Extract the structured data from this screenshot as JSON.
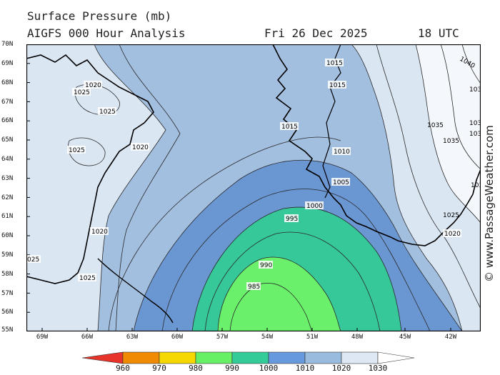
{
  "header": {
    "title": "Surface Pressure (mb)",
    "subtitle": "AIGFS 000 Hour Analysis",
    "date": "Fri 26 Dec 2025",
    "time": "18 UTC"
  },
  "credit": "© www.PassageWeather.com",
  "axes": {
    "latitudes": [
      "70N",
      "69N",
      "68N",
      "67N",
      "66N",
      "65N",
      "64N",
      "63N",
      "62N",
      "61N",
      "60N",
      "59N",
      "58N",
      "57N",
      "56N",
      "55N"
    ],
    "longitudes": [
      "69W",
      "66W",
      "63W",
      "60W",
      "57W",
      "54W",
      "51W",
      "48W",
      "45W",
      "42W"
    ]
  },
  "contour_labels": {
    "c1020a": "1020",
    "c1025a": "1025",
    "c1025b": "1025",
    "c1025c": "1025",
    "c1020b": "1020",
    "c1020c": "1020",
    "c1025d": "025",
    "c1025e": "1025",
    "c1015a": "1015",
    "c1015b": "1015",
    "c1015c": "1015",
    "c1010": "1010",
    "c1005": "1005",
    "c1000": "1000",
    "c995": "995",
    "c990": "990",
    "c985": "985",
    "c1040": "1040",
    "c1035a": "1035",
    "c1035b": "1035",
    "c103a": "103",
    "c103b": "103",
    "c103c": "103",
    "c103d": "103",
    "c1025f": "1025",
    "c1020d": "1020"
  },
  "legend": {
    "ticks": [
      "960",
      "970",
      "980",
      "990",
      "1000",
      "1010",
      "1020",
      "1030"
    ],
    "colors": [
      "#e8332a",
      "#f08a00",
      "#f5d800",
      "#66f066",
      "#33cc99",
      "#6699dd",
      "#99bbdd",
      "#dde8f4"
    ]
  },
  "colors": {
    "lt1010": "#6a96d2",
    "lt1020": "#a3bfe0",
    "gt1020": "#dbe6f3",
    "gt1030": "#f4f7fb",
    "lt1000": "#36c898",
    "lt990": "#6af06a"
  }
}
